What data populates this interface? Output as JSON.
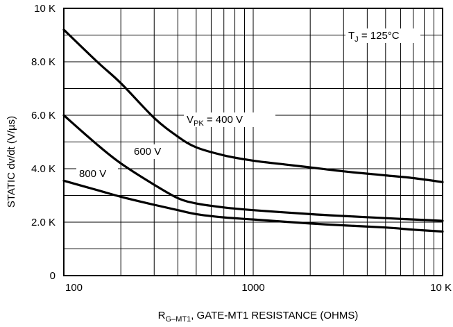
{
  "chart_data": {
    "type": "line",
    "xscale": "log",
    "xlim": [
      100,
      10000
    ],
    "ylim": [
      0,
      10000
    ],
    "grid": true,
    "xlabel": {
      "main": "R",
      "sub": "G–MT1",
      "rest": ", GATE-MT1 RESISTANCE (OHMS)"
    },
    "ylabel": "STATIC dv/dt (V/µs)",
    "x_tick_labels": [
      {
        "x": 100,
        "label": "100"
      },
      {
        "x": 1000,
        "label": "1000"
      },
      {
        "x": 10000,
        "label": "10 K"
      }
    ],
    "y_tick_labels": [
      {
        "y": 0,
        "label": "0"
      },
      {
        "y": 2000,
        "label": "2.0 K"
      },
      {
        "y": 4000,
        "label": "4.0 K"
      },
      {
        "y": 6000,
        "label": "6.0 K"
      },
      {
        "y": 8000,
        "label": "8.0 K"
      },
      {
        "y": 10000,
        "label": "10 K"
      }
    ],
    "annotation": {
      "main": "T",
      "sub": "J",
      "rest": " = 125°C"
    },
    "series": [
      {
        "name": "V_PK = 400 V",
        "label_main": "V",
        "label_sub": "PK",
        "label_rest": " = 400 V",
        "x": [
          100,
          150,
          200,
          300,
          400,
          500,
          700,
          1000,
          1500,
          2000,
          3000,
          5000,
          7000,
          10000
        ],
        "y": [
          9200,
          8000,
          7200,
          5900,
          5200,
          4800,
          4500,
          4300,
          4150,
          4050,
          3900,
          3750,
          3650,
          3500
        ]
      },
      {
        "name": "600 V",
        "label_main": "600 V",
        "x": [
          100,
          150,
          200,
          300,
          400,
          500,
          700,
          1000,
          2000,
          3000,
          5000,
          7000,
          10000
        ],
        "y": [
          6000,
          4900,
          4200,
          3400,
          2900,
          2700,
          2550,
          2450,
          2300,
          2230,
          2150,
          2100,
          2050
        ]
      },
      {
        "name": "800 V",
        "label_main": "800 V",
        "x": [
          100,
          150,
          200,
          300,
          400,
          500,
          700,
          1000,
          2000,
          3000,
          5000,
          7000,
          10000
        ],
        "y": [
          3550,
          3200,
          2950,
          2650,
          2450,
          2300,
          2180,
          2100,
          1950,
          1880,
          1800,
          1720,
          1650
        ]
      }
    ]
  }
}
